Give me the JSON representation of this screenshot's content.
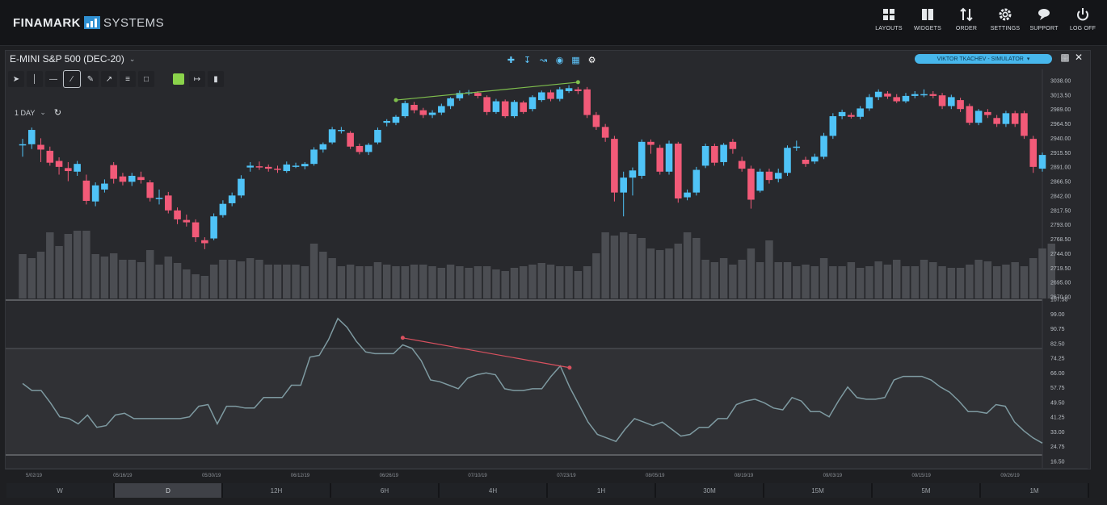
{
  "header": {
    "logo_primary": "FINAMARK",
    "logo_secondary": "SYSTEMS",
    "nav": [
      {
        "label": "LAYOUTS",
        "icon": "layouts-icon"
      },
      {
        "label": "WIDGETS",
        "icon": "widgets-icon"
      },
      {
        "label": "ORDER",
        "icon": "order-icon"
      },
      {
        "label": "SETTINGS",
        "icon": "gear-icon"
      },
      {
        "label": "SUPPORT",
        "icon": "support-icon"
      },
      {
        "label": "LOG OFF",
        "icon": "power-icon"
      }
    ]
  },
  "chart_panel": {
    "instrument": "E-MINI S&P 500 (DEC-20)",
    "period": "1 DAY",
    "user_badge": "VIKTOR TKACHEV - SIMULATOR"
  },
  "colors": {
    "up": "#4fc3f7",
    "down": "#f25a78",
    "volume": "#4b4d52",
    "trend_up": "#7fbf4d",
    "trend_down": "#d9515f",
    "rsi_line": "#7e9aa1"
  },
  "chart_data": {
    "type": "candlestick",
    "price_scale_labels": [
      "3038.00",
      "3013.50",
      "2989.00",
      "2964.50",
      "2940.00",
      "2915.50",
      "2891.00",
      "2866.50",
      "2842.00",
      "2817.50",
      "2793.00",
      "2768.50",
      "2744.00",
      "2719.50",
      "2695.00",
      "2670.00"
    ],
    "indicator_scale_labels": [
      "107.50",
      "99.00",
      "90.75",
      "82.50",
      "74.25",
      "66.00",
      "57.75",
      "49.50",
      "41.25",
      "33.00",
      "24.75",
      "16.50"
    ],
    "date_labels": [
      "5/02/19",
      "05/16/19",
      "05/30/19",
      "06/12/19",
      "06/26/19",
      "07/10/19",
      "07/23/19",
      "08/05/19",
      "08/19/19",
      "09/03/19",
      "09/15/19",
      "09/26/19"
    ],
    "price_ylim": [
      2670,
      3038
    ],
    "indicator_ylim": [
      16.5,
      107.5
    ],
    "candles": [
      {
        "o": 2925,
        "c": 2926,
        "h": 2935,
        "l": 2905
      },
      {
        "o": 2926,
        "c": 2950,
        "h": 2954,
        "l": 2918
      },
      {
        "o": 2925,
        "c": 2917,
        "h": 2936,
        "l": 2896
      },
      {
        "o": 2915,
        "c": 2895,
        "h": 2922,
        "l": 2890
      },
      {
        "o": 2898,
        "c": 2888,
        "h": 2904,
        "l": 2875
      },
      {
        "o": 2886,
        "c": 2881,
        "h": 2896,
        "l": 2864
      },
      {
        "o": 2880,
        "c": 2893,
        "h": 2898,
        "l": 2873
      },
      {
        "o": 2865,
        "c": 2831,
        "h": 2875,
        "l": 2825
      },
      {
        "o": 2830,
        "c": 2857,
        "h": 2862,
        "l": 2822
      },
      {
        "o": 2850,
        "c": 2860,
        "h": 2867,
        "l": 2845
      },
      {
        "o": 2891,
        "c": 2868,
        "h": 2896,
        "l": 2860
      },
      {
        "o": 2872,
        "c": 2863,
        "h": 2878,
        "l": 2857
      },
      {
        "o": 2863,
        "c": 2873,
        "h": 2878,
        "l": 2856
      },
      {
        "o": 2871,
        "c": 2866,
        "h": 2880,
        "l": 2860
      },
      {
        "o": 2862,
        "c": 2836,
        "h": 2866,
        "l": 2830
      },
      {
        "o": 2836,
        "c": 2836,
        "h": 2850,
        "l": 2825
      },
      {
        "o": 2840,
        "c": 2815,
        "h": 2846,
        "l": 2810
      },
      {
        "o": 2815,
        "c": 2800,
        "h": 2820,
        "l": 2792
      },
      {
        "o": 2799,
        "c": 2795,
        "h": 2808,
        "l": 2788
      },
      {
        "o": 2795,
        "c": 2770,
        "h": 2800,
        "l": 2762
      },
      {
        "o": 2765,
        "c": 2760,
        "h": 2770,
        "l": 2750
      },
      {
        "o": 2768,
        "c": 2805,
        "h": 2810,
        "l": 2765
      },
      {
        "o": 2807,
        "c": 2826,
        "h": 2832,
        "l": 2803
      },
      {
        "o": 2827,
        "c": 2840,
        "h": 2845,
        "l": 2822
      },
      {
        "o": 2840,
        "c": 2868,
        "h": 2874,
        "l": 2836
      },
      {
        "o": 2887,
        "c": 2890,
        "h": 2896,
        "l": 2880
      },
      {
        "o": 2889,
        "c": 2887,
        "h": 2897,
        "l": 2883
      },
      {
        "o": 2888,
        "c": 2885,
        "h": 2892,
        "l": 2880
      },
      {
        "o": 2885,
        "c": 2883,
        "h": 2890,
        "l": 2878
      },
      {
        "o": 2881,
        "c": 2892,
        "h": 2897,
        "l": 2878
      },
      {
        "o": 2889,
        "c": 2890,
        "h": 2895,
        "l": 2886
      },
      {
        "o": 2889,
        "c": 2893,
        "h": 2896,
        "l": 2884
      },
      {
        "o": 2893,
        "c": 2917,
        "h": 2921,
        "l": 2890
      },
      {
        "o": 2917,
        "c": 2926,
        "h": 2929,
        "l": 2912
      },
      {
        "o": 2929,
        "c": 2951,
        "h": 2955,
        "l": 2926
      },
      {
        "o": 2950,
        "c": 2950,
        "h": 2955,
        "l": 2944
      },
      {
        "o": 2945,
        "c": 2922,
        "h": 2948,
        "l": 2918
      },
      {
        "o": 2923,
        "c": 2913,
        "h": 2927,
        "l": 2909
      },
      {
        "o": 2913,
        "c": 2925,
        "h": 2928,
        "l": 2908
      },
      {
        "o": 2929,
        "c": 2950,
        "h": 2954,
        "l": 2926
      },
      {
        "o": 2962,
        "c": 2965,
        "h": 2968,
        "l": 2956
      },
      {
        "o": 2962,
        "c": 2972,
        "h": 2975,
        "l": 2958
      },
      {
        "o": 2973,
        "c": 2995,
        "h": 2999,
        "l": 2970
      },
      {
        "o": 2992,
        "c": 2983,
        "h": 2997,
        "l": 2978
      },
      {
        "o": 2983,
        "c": 2975,
        "h": 2987,
        "l": 2970
      },
      {
        "o": 2975,
        "c": 2979,
        "h": 2983,
        "l": 2970
      },
      {
        "o": 2979,
        "c": 2990,
        "h": 2994,
        "l": 2975
      },
      {
        "o": 2990,
        "c": 3003,
        "h": 3005,
        "l": 2985
      },
      {
        "o": 3003,
        "c": 3012,
        "h": 3016,
        "l": 2999
      },
      {
        "o": 3012,
        "c": 3013,
        "h": 3017,
        "l": 3008
      },
      {
        "o": 3012,
        "c": 3007,
        "h": 3015,
        "l": 3003
      },
      {
        "o": 3005,
        "c": 2980,
        "h": 3008,
        "l": 2975
      },
      {
        "o": 2980,
        "c": 2998,
        "h": 3002,
        "l": 2977
      },
      {
        "o": 2998,
        "c": 2973,
        "h": 3001,
        "l": 2970
      },
      {
        "o": 2973,
        "c": 2997,
        "h": 3000,
        "l": 2970
      },
      {
        "o": 2996,
        "c": 2980,
        "h": 2999,
        "l": 2977
      },
      {
        "o": 2985,
        "c": 3005,
        "h": 3008,
        "l": 2981
      },
      {
        "o": 3000,
        "c": 3013,
        "h": 3016,
        "l": 2997
      },
      {
        "o": 3013,
        "c": 3002,
        "h": 3017,
        "l": 2998
      },
      {
        "o": 3002,
        "c": 3018,
        "h": 3022,
        "l": 2998
      },
      {
        "o": 3015,
        "c": 3020,
        "h": 3025,
        "l": 3012
      },
      {
        "o": 3018,
        "c": 3015,
        "h": 3022,
        "l": 3010
      },
      {
        "o": 3018,
        "c": 2975,
        "h": 3022,
        "l": 2970
      },
      {
        "o": 2975,
        "c": 2955,
        "h": 2980,
        "l": 2950
      },
      {
        "o": 2955,
        "c": 2937,
        "h": 2960,
        "l": 2930
      },
      {
        "o": 2935,
        "c": 2845,
        "h": 2940,
        "l": 2830
      },
      {
        "o": 2845,
        "c": 2870,
        "h": 2880,
        "l": 2805
      },
      {
        "o": 2870,
        "c": 2882,
        "h": 2887,
        "l": 2840
      },
      {
        "o": 2873,
        "c": 2930,
        "h": 2934,
        "l": 2868
      },
      {
        "o": 2930,
        "c": 2925,
        "h": 2934,
        "l": 2910
      },
      {
        "o": 2920,
        "c": 2880,
        "h": 2925,
        "l": 2875
      },
      {
        "o": 2880,
        "c": 2927,
        "h": 2932,
        "l": 2875
      },
      {
        "o": 2927,
        "c": 2835,
        "h": 2930,
        "l": 2828
      },
      {
        "o": 2837,
        "c": 2845,
        "h": 2850,
        "l": 2832
      },
      {
        "o": 2845,
        "c": 2883,
        "h": 2888,
        "l": 2840
      },
      {
        "o": 2890,
        "c": 2923,
        "h": 2927,
        "l": 2886
      },
      {
        "o": 2923,
        "c": 2895,
        "h": 2927,
        "l": 2890
      },
      {
        "o": 2896,
        "c": 2925,
        "h": 2928,
        "l": 2890
      },
      {
        "o": 2930,
        "c": 2918,
        "h": 2935,
        "l": 2910
      },
      {
        "o": 2898,
        "c": 2885,
        "h": 2905,
        "l": 2880
      },
      {
        "o": 2885,
        "c": 2833,
        "h": 2890,
        "l": 2818
      },
      {
        "o": 2848,
        "c": 2880,
        "h": 2885,
        "l": 2845
      },
      {
        "o": 2880,
        "c": 2866,
        "h": 2885,
        "l": 2860
      },
      {
        "o": 2868,
        "c": 2878,
        "h": 2885,
        "l": 2862
      },
      {
        "o": 2878,
        "c": 2920,
        "h": 2924,
        "l": 2873
      },
      {
        "o": 2920,
        "c": 2922,
        "h": 2932,
        "l": 2915
      },
      {
        "o": 2900,
        "c": 2893,
        "h": 2905,
        "l": 2888
      },
      {
        "o": 2897,
        "c": 2905,
        "h": 2910,
        "l": 2893
      },
      {
        "o": 2905,
        "c": 2940,
        "h": 2945,
        "l": 2901
      },
      {
        "o": 2940,
        "c": 2973,
        "h": 2978,
        "l": 2935
      },
      {
        "o": 2973,
        "c": 2980,
        "h": 2984,
        "l": 2968
      },
      {
        "o": 2975,
        "c": 2972,
        "h": 2979,
        "l": 2969
      },
      {
        "o": 2972,
        "c": 2986,
        "h": 2990,
        "l": 2968
      },
      {
        "o": 2986,
        "c": 3005,
        "h": 3010,
        "l": 2982
      },
      {
        "o": 3005,
        "c": 3014,
        "h": 3018,
        "l": 3000
      },
      {
        "o": 3011,
        "c": 3006,
        "h": 3015,
        "l": 3002
      },
      {
        "o": 3005,
        "c": 2998,
        "h": 3010,
        "l": 2995
      },
      {
        "o": 2998,
        "c": 3007,
        "h": 3012,
        "l": 2995
      },
      {
        "o": 3007,
        "c": 3010,
        "h": 3015,
        "l": 3003
      },
      {
        "o": 3010,
        "c": 3010,
        "h": 3018,
        "l": 3005
      },
      {
        "o": 3010,
        "c": 3007,
        "h": 3015,
        "l": 3003
      },
      {
        "o": 3008,
        "c": 2990,
        "h": 3012,
        "l": 2985
      },
      {
        "o": 2990,
        "c": 3005,
        "h": 3009,
        "l": 2985
      },
      {
        "o": 3000,
        "c": 2985,
        "h": 3004,
        "l": 2980
      },
      {
        "o": 2990,
        "c": 2962,
        "h": 2994,
        "l": 2958
      },
      {
        "o": 2962,
        "c": 2982,
        "h": 2985,
        "l": 2958
      },
      {
        "o": 2980,
        "c": 2975,
        "h": 2985,
        "l": 2970
      },
      {
        "o": 2970,
        "c": 2960,
        "h": 2975,
        "l": 2955
      },
      {
        "o": 2960,
        "c": 2978,
        "h": 2982,
        "l": 2955
      },
      {
        "o": 2978,
        "c": 2960,
        "h": 2982,
        "l": 2955
      },
      {
        "o": 2978,
        "c": 2940,
        "h": 2982,
        "l": 2935
      },
      {
        "o": 2935,
        "c": 2888,
        "h": 2940,
        "l": 2878
      },
      {
        "o": 2885,
        "c": 2908,
        "h": 2912,
        "l": 2880
      }
    ],
    "volume": [
      55,
      50,
      58,
      82,
      65,
      80,
      84,
      84,
      55,
      52,
      56,
      48,
      48,
      45,
      60,
      42,
      52,
      44,
      36,
      30,
      28,
      42,
      48,
      48,
      46,
      50,
      48,
      42,
      42,
      42,
      42,
      40,
      68,
      58,
      50,
      40,
      42,
      40,
      40,
      45,
      42,
      40,
      40,
      42,
      42,
      40,
      38,
      42,
      40,
      38,
      40,
      40,
      36,
      34,
      38,
      40,
      42,
      44,
      42,
      40,
      40,
      34,
      40,
      56,
      82,
      78,
      82,
      80,
      75,
      62,
      60,
      62,
      68,
      82,
      75,
      48,
      45,
      50,
      42,
      48,
      62,
      45,
      72,
      45,
      45,
      40,
      42,
      40,
      50,
      40,
      40,
      45,
      38,
      40,
      46,
      42,
      48,
      40,
      40,
      48,
      45,
      40,
      38,
      38,
      42,
      48,
      46,
      40,
      42,
      45,
      40,
      50,
      62,
      68
    ],
    "rsi": [
      60,
      56,
      56,
      49,
      41,
      40,
      37,
      42,
      35,
      36,
      42,
      43,
      40,
      40,
      40,
      40,
      40,
      40,
      41,
      47,
      48,
      37,
      47,
      47,
      46,
      46,
      52,
      52,
      52,
      59,
      59,
      75,
      76,
      85,
      97,
      92,
      84,
      78,
      77,
      77,
      77,
      82,
      80,
      73,
      62,
      61,
      59,
      57,
      63,
      65,
      66,
      65,
      57,
      56,
      56,
      57,
      57,
      64,
      70,
      58,
      48,
      38,
      31,
      29,
      27,
      34,
      40,
      38,
      36,
      38,
      34,
      30,
      31,
      35,
      35,
      40,
      40,
      48,
      50,
      51,
      49,
      46,
      45,
      52,
      50,
      44,
      44,
      41,
      50,
      58,
      52,
      51,
      51,
      52,
      62,
      64,
      64,
      64,
      62,
      58,
      55,
      50,
      44,
      44,
      43,
      48,
      47,
      38,
      33,
      29,
      26
    ],
    "trend_lines": [
      {
        "pane": "price",
        "from": {
          "bar": 41,
          "value": 3000
        },
        "to": {
          "bar": 61,
          "value": 3030
        },
        "color": "#7fbf4d"
      },
      {
        "pane": "indicator",
        "from": {
          "bar": 41,
          "value": 86
        },
        "to": {
          "bar": 59,
          "value": 69
        },
        "color": "#d9515f"
      }
    ]
  },
  "timeframes": [
    {
      "label": "W",
      "selected": false
    },
    {
      "label": "D",
      "selected": true
    },
    {
      "label": "12H",
      "selected": false
    },
    {
      "label": "6H",
      "selected": false
    },
    {
      "label": "4H",
      "selected": false
    },
    {
      "label": "1H",
      "selected": false
    },
    {
      "label": "30M",
      "selected": false
    },
    {
      "label": "15M",
      "selected": false
    },
    {
      "label": "5M",
      "selected": false
    },
    {
      "label": "1M",
      "selected": false
    }
  ]
}
